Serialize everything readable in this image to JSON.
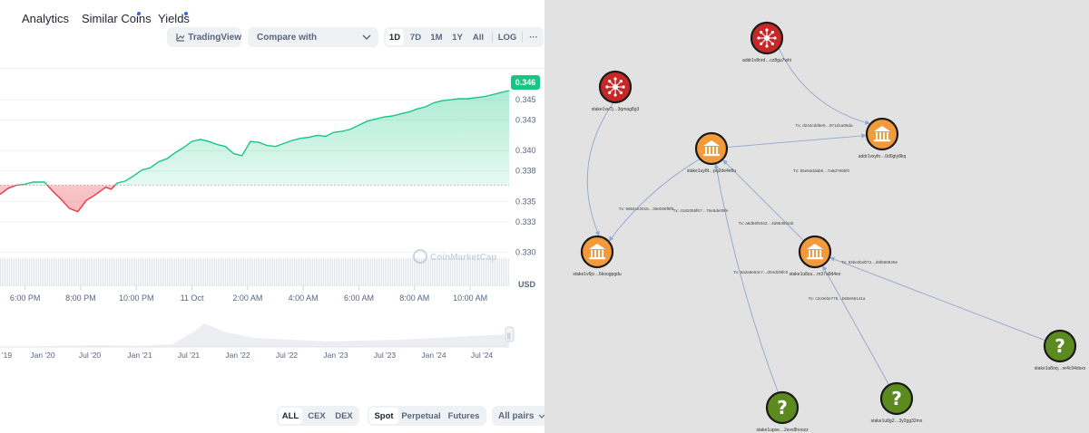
{
  "nav": {
    "tabs": [
      {
        "label": "Analytics",
        "dot": false
      },
      {
        "label": "Similar Coins",
        "dot": true
      },
      {
        "label": "Yields",
        "dot": true
      }
    ]
  },
  "toolbar": {
    "tradingview_label": "TradingView",
    "compare_label": "Compare with",
    "ranges": [
      "1D",
      "7D",
      "1M",
      "1Y",
      "All"
    ],
    "active_range": "1D",
    "log_label": "LOG",
    "more_label": "···"
  },
  "chart": {
    "current_price": "0.346",
    "currency": "USD",
    "watermark": "CoinMarketCap",
    "colors": {
      "up": "#16c784",
      "down": "#ea3943",
      "baseline": "#bdbdbd"
    }
  },
  "chart_data": {
    "type": "area",
    "baseline": 0.3366,
    "ylim": [
      0.3288,
      0.3475
    ],
    "y_ticks": [
      0.345,
      0.343,
      0.34,
      0.338,
      0.335,
      0.333,
      0.33
    ],
    "y_tick_labels": [
      "0.345",
      "0.343",
      "0.340",
      "0.338",
      "0.335",
      "0.333",
      "0.330"
    ],
    "x_tick_labels": [
      "6:00 PM",
      "8:00 PM",
      "10:00 PM",
      "11 Oct",
      "2:00 AM",
      "4:00 AM",
      "6:00 AM",
      "8:00 AM",
      "10:00 AM"
    ],
    "x_tick_hours": [
      0,
      2,
      4,
      6,
      8,
      10,
      12,
      14,
      16
    ],
    "x_range_hours": [
      -0.9,
      17.4
    ],
    "series": [
      {
        "x": [
          -0.9,
          -0.6,
          -0.3,
          0,
          0.3,
          0.7,
          1.0,
          1.3,
          1.6,
          1.9,
          2.2,
          2.5,
          2.7,
          2.9,
          3.1,
          3.3,
          3.6,
          3.9,
          4.2,
          4.5,
          4.8,
          5.1,
          5.4,
          5.7,
          6.0,
          6.3,
          6.6,
          6.9,
          7.2,
          7.5,
          7.8,
          8.1,
          8.4,
          8.7,
          9.0,
          9.3,
          9.6,
          9.9,
          10.2,
          10.5,
          10.8,
          11.1,
          11.4,
          11.7,
          12.0,
          12.3,
          12.6,
          12.9,
          13.2,
          13.5,
          13.8,
          14.1,
          14.4,
          14.7,
          15.0,
          15.3,
          15.6,
          15.9,
          16.2,
          16.5,
          16.8,
          17.1,
          17.4
        ],
        "values": [
          0.3357,
          0.3363,
          0.3366,
          0.3367,
          0.3369,
          0.3369,
          0.336,
          0.3352,
          0.3343,
          0.334,
          0.3351,
          0.3356,
          0.336,
          0.3364,
          0.3362,
          0.3368,
          0.337,
          0.3375,
          0.3381,
          0.3383,
          0.3389,
          0.3392,
          0.3398,
          0.3403,
          0.3409,
          0.3411,
          0.3409,
          0.3406,
          0.3404,
          0.3397,
          0.3395,
          0.3409,
          0.3408,
          0.3405,
          0.3404,
          0.3407,
          0.341,
          0.3412,
          0.3413,
          0.3415,
          0.3414,
          0.3418,
          0.3419,
          0.3421,
          0.3425,
          0.3429,
          0.3431,
          0.3433,
          0.3434,
          0.3436,
          0.3438,
          0.3441,
          0.3443,
          0.3447,
          0.3449,
          0.345,
          0.3451,
          0.3451,
          0.3452,
          0.3453,
          0.3455,
          0.3457,
          0.3459
        ]
      }
    ]
  },
  "navigator": {
    "labels": [
      "'19",
      "Jan '20",
      "Jul '20",
      "Jan '21",
      "Jul '21",
      "Jan '22",
      "Jul '22",
      "Jan '23",
      "Jul '23",
      "Jan '24",
      "Jul '24"
    ],
    "handle_label": "||"
  },
  "filters": {
    "market": [
      "ALL",
      "CEX",
      "DEX"
    ],
    "active_market": "ALL",
    "type": [
      "Spot",
      "Perpetual",
      "Futures"
    ],
    "active_type": "Spot",
    "pairs_label": "All pairs"
  },
  "graph": {
    "nodes": [
      {
        "id": "n1",
        "kind": "red",
        "label": "addr1v8nrd…cz8gu7whi"
      },
      {
        "id": "n2",
        "kind": "red",
        "label": "stake1ve7j…3qmag8g3"
      },
      {
        "id": "n3",
        "kind": "orange",
        "label": "addr1vxyfn…0d0gty8kq"
      },
      {
        "id": "n4",
        "kind": "orange",
        "label": "stake1uy8t…pq2de4e6u"
      },
      {
        "id": "n5",
        "kind": "orange",
        "label": "stake1v6jv…6koogpgdu"
      },
      {
        "id": "n6",
        "kind": "orange",
        "label": "stake1u8za…m37a9d4ex"
      },
      {
        "id": "n7",
        "kind": "unknown",
        "label": "stake1u8oq…re4c94dsxx"
      },
      {
        "id": "n8",
        "kind": "unknown",
        "label": "stake1upse…2evs8hoozz"
      },
      {
        "id": "n9",
        "kind": "unknown",
        "label": "stake1u8g2…3y2gg32mx"
      }
    ],
    "edges": [
      {
        "from": "n1",
        "to": "n3",
        "label": "Tx: d244cdd5e5…971d1a66da"
      },
      {
        "from": "n4",
        "to": "n3",
        "label": "Tx: 55e5dddab9…7a6d796bf0"
      },
      {
        "from": "n2",
        "to": "n5",
        "label": "Tx: 9664ce2015…35eb08f8f8"
      },
      {
        "from": "n4",
        "to": "n5",
        "label": "Tx: 4182055f67…76e5de05fe"
      },
      {
        "from": "n6",
        "to": "n4",
        "label": "Tx: a6db6f9342…4d9835f44b"
      },
      {
        "from": "n8",
        "to": "n4",
        "label": "Tx: 9a2a9e54c7…d04d1f8fc0"
      },
      {
        "from": "n7",
        "to": "n6",
        "label": "Tx: 93be0bd072…d9f666829e"
      },
      {
        "from": "n9",
        "to": "n6",
        "label": "Tx: c2c0ebe775…b59e65141a"
      }
    ],
    "colors": {
      "red": "#c62828",
      "orange": "#f39a3a",
      "unknown": "#5b8a1f",
      "edge": "#8fa7cf"
    }
  }
}
